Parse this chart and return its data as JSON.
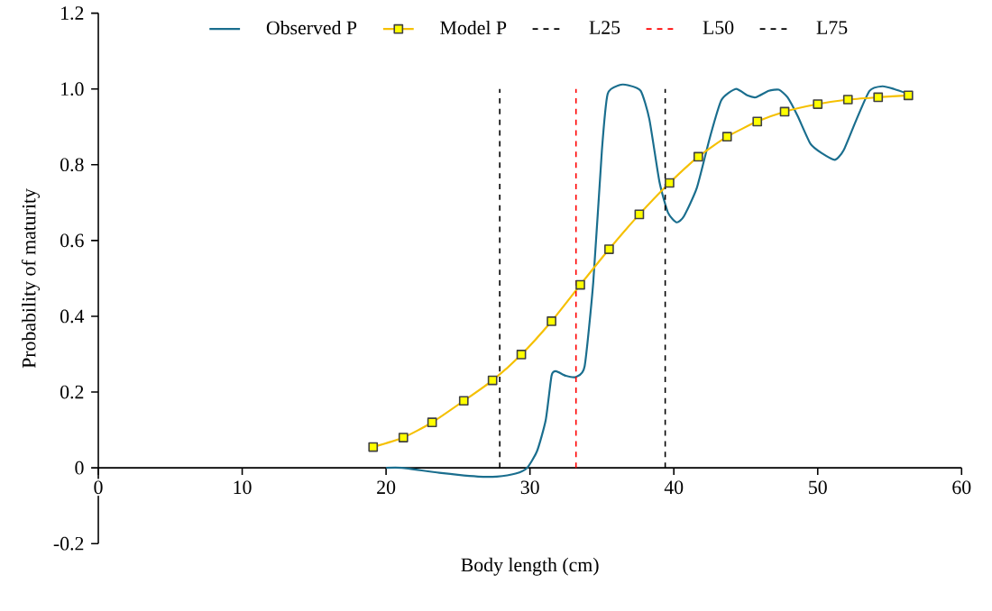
{
  "chart_data": {
    "type": "line",
    "xlabel": "Body length (cm)",
    "ylabel": "Probability of maturity",
    "xlim": [
      0,
      60
    ],
    "xticks": [
      0,
      10,
      20,
      30,
      40,
      50,
      60
    ],
    "ylim": [
      -0.2,
      1.2
    ],
    "yticks": [
      -0.2,
      0,
      0.2,
      0.4,
      0.6,
      0.8,
      {
        "value": 1.0,
        "label": "1.0"
      },
      1.2
    ],
    "legend": "top",
    "grid": false,
    "series": [
      {
        "name": "Observed P",
        "color": "#1a6e8e",
        "marker": "none",
        "x": [
          20,
          21.1,
          23.7,
          26.4,
          27.7,
          29.0,
          29.8,
          30.5,
          31.1,
          31.5,
          31.8,
          32.5,
          33.2,
          33.8,
          34.4,
          35.0,
          35.4,
          36.2,
          36.8,
          37.7,
          38.3,
          39.0,
          39.6,
          40.2,
          40.7,
          41.6,
          42.5,
          43.3,
          44.3,
          45.1,
          45.7,
          46.6,
          47.3,
          47.9,
          48.6,
          49.5,
          50.3,
          51.2,
          51.8,
          52.7,
          53.6,
          54.5,
          55.3,
          56.3
        ],
        "values": [
          0,
          0,
          -0.013,
          -0.023,
          -0.023,
          -0.015,
          0,
          0.045,
          0.127,
          0.243,
          0.255,
          0.243,
          0.24,
          0.268,
          0.49,
          0.838,
          0.987,
          1.01,
          1.01,
          0.995,
          0.92,
          0.755,
          0.673,
          0.648,
          0.664,
          0.739,
          0.871,
          0.97,
          1.0,
          0.983,
          0.978,
          0.995,
          0.998,
          0.978,
          0.929,
          0.855,
          0.83,
          0.813,
          0.838,
          0.92,
          0.995,
          1.007,
          1.0,
          0.987
        ]
      },
      {
        "name": "Model P",
        "color": "#f5c000",
        "marker": "square",
        "x": [
          19.1,
          21.2,
          23.2,
          25.4,
          27.4,
          29.4,
          31.5,
          33.5,
          35.5,
          37.6,
          39.7,
          41.7,
          43.7,
          45.8,
          47.7,
          50.0,
          52.1,
          54.2,
          56.3
        ],
        "values": [
          0.055,
          0.08,
          0.12,
          0.177,
          0.231,
          0.299,
          0.387,
          0.483,
          0.577,
          0.669,
          0.752,
          0.821,
          0.874,
          0.914,
          0.94,
          0.96,
          0.972,
          0.978,
          0.983
        ]
      }
    ],
    "ref_lines": [
      {
        "axis": "x",
        "value": 27.9,
        "label": "L25",
        "color": "#000000",
        "line_style": "dashed"
      },
      {
        "axis": "x",
        "value": 33.2,
        "label": "L50",
        "color": "#ff0000",
        "line_style": "dashed"
      },
      {
        "axis": "x",
        "value": 39.4,
        "label": "L75",
        "color": "#000000",
        "line_style": "dashed"
      }
    ]
  }
}
